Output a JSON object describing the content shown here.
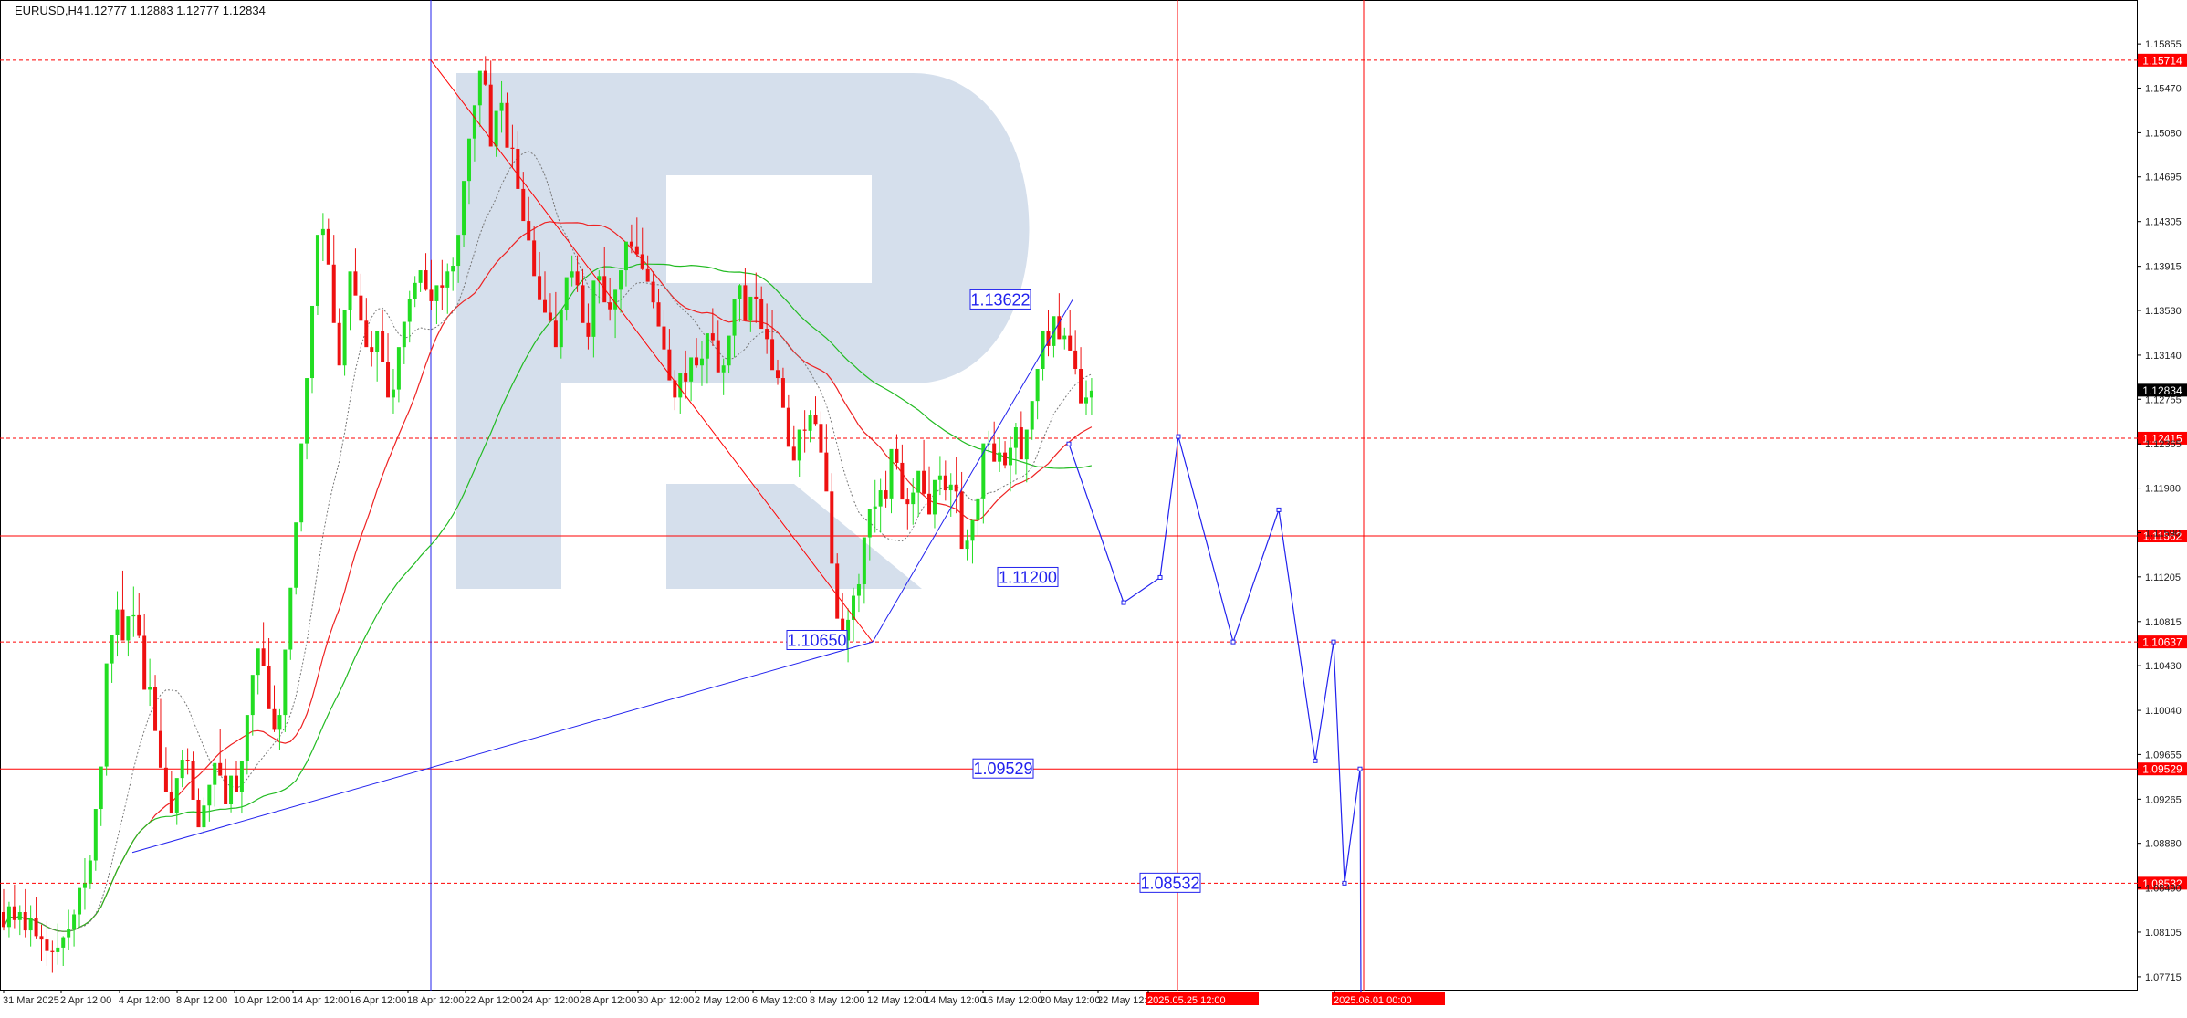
{
  "header": {
    "symbol": "EURUSD,H4",
    "ohlc": "1.12777 1.12883 1.12777 1.12834"
  },
  "colors": {
    "up_candle": "#22dd22",
    "down_candle": "#ee1111",
    "level_line": "#ff0000",
    "forecast": "#2222ee",
    "ma_red": "#ee2222",
    "ma_green": "#22bb22",
    "ma_dotted": "#777777",
    "watermark": "#d5dfec",
    "axis_text": "#222222",
    "price_tag_bg": "#000000",
    "level_tag_bg": "#ff0000"
  },
  "chart_data": {
    "type": "candlestick",
    "symbol": "EURUSD",
    "timeframe": "H4",
    "ylim": [
      1.07555,
      1.16111
    ],
    "y_ticks": [
      "1.15855",
      "1.15470",
      "1.15080",
      "1.14695",
      "1.14305",
      "1.13915",
      "1.13530",
      "1.13140",
      "1.12755",
      "1.12365",
      "1.11980",
      "1.11590",
      "1.11205",
      "1.10815",
      "1.10430",
      "1.10040",
      "1.09655",
      "1.09265",
      "1.08880",
      "1.08490",
      "1.08105",
      "1.07715"
    ],
    "x_ticks": [
      "31 Mar 2025",
      "2 Apr 12:00",
      "4 Apr 12:00",
      "8 Apr 12:00",
      "10 Apr 12:00",
      "14 Apr 12:00",
      "16 Apr 12:00",
      "18 Apr 12:00",
      "22 Apr 12:00",
      "24 Apr 12:00",
      "28 Apr 12:00",
      "30 Apr 12:00",
      "2 May 12:00",
      "6 May 12:00",
      "8 May 12:00",
      "12 May 12:00",
      "14 May 12:00",
      "16 May 12:00",
      "20 May 12:00",
      "22 May 12:00",
      "2025.05.25 12:00",
      "2025.06.01 00:00"
    ],
    "current_price": "1.12834",
    "horizontal_levels": [
      {
        "label": "1.15714",
        "value": 1.15714,
        "style": "dotted"
      },
      {
        "label": "1.12415",
        "value": 1.12415,
        "style": "dotted"
      },
      {
        "label": "1.11562",
        "value": 1.11562,
        "style": "solid"
      },
      {
        "label": "1.10637",
        "value": 1.10637,
        "style": "dotted"
      },
      {
        "label": "1.09529",
        "value": 1.09529,
        "style": "solid"
      },
      {
        "label": "1.08532",
        "value": 1.08532,
        "style": "dotted"
      }
    ],
    "vertical_markers": [
      "18 Apr 12:00",
      "2025.05.25 12:00",
      "2025.06.01 00:00"
    ],
    "forecast_labels": [
      {
        "text": "1.13622",
        "value": 1.13622
      },
      {
        "text": "1.11200",
        "value": 1.112
      },
      {
        "text": "1.10650",
        "value": 1.1065
      },
      {
        "text": "1.09529",
        "value": 1.09529
      },
      {
        "text": "1.08532",
        "value": 1.08532
      }
    ],
    "forecast_path": [
      {
        "t": 1171,
        "price": 1.12365
      },
      {
        "t": 1231,
        "price": 1.1098
      },
      {
        "t": 1271,
        "price": 1.112
      },
      {
        "t": 1291,
        "price": 1.1243
      },
      {
        "t": 1351,
        "price": 1.10637
      },
      {
        "t": 1401,
        "price": 1.1179
      },
      {
        "t": 1441,
        "price": 1.096
      },
      {
        "t": 1461,
        "price": 1.10637
      },
      {
        "t": 1473,
        "price": 1.08532
      },
      {
        "t": 1490,
        "price": 1.09529
      },
      {
        "t": 1491,
        "price": 1.07555
      }
    ],
    "wave_lines": [
      {
        "from": {
          "t": 472,
          "price": 1.15714
        },
        "to": {
          "t": 956,
          "price": 1.10637
        }
      },
      {
        "from": {
          "t": 956,
          "price": 1.10637
        },
        "to": {
          "t": 1175,
          "price": 1.13622
        }
      },
      {
        "from": {
          "t": 145,
          "price": 1.088
        },
        "to": {
          "t": 956,
          "price": 1.10637
        }
      }
    ],
    "candles": [
      [
        1.0828,
        1.0848,
        1.0812,
        1.0815
      ],
      [
        1.0815,
        1.0837,
        1.0806,
        1.0833
      ],
      [
        1.0833,
        1.0852,
        1.0814,
        1.0821
      ],
      [
        1.0821,
        1.0834,
        1.0808,
        1.0828
      ],
      [
        1.0828,
        1.0848,
        1.0806,
        1.0812
      ],
      [
        1.0812,
        1.0834,
        1.0798,
        1.0823
      ],
      [
        1.0823,
        1.0841,
        1.0805,
        1.0807
      ],
      [
        1.0807,
        1.0817,
        1.0785,
        1.0804
      ],
      [
        1.0804,
        1.082,
        1.0781,
        1.0794
      ],
      [
        1.0794,
        1.0803,
        1.0775,
        1.0793
      ],
      [
        1.0793,
        1.0818,
        1.0782,
        1.0797
      ],
      [
        1.0797,
        1.0807,
        1.0781,
        1.0806
      ],
      [
        1.0806,
        1.083,
        1.0795,
        1.0813
      ],
      [
        1.0813,
        1.083,
        1.0798,
        1.0826
      ],
      [
        1.0826,
        1.0845,
        1.0815,
        1.0849
      ],
      [
        1.0849,
        1.0875,
        1.083,
        1.0853
      ],
      [
        1.0853,
        1.0878,
        1.0848,
        1.0873
      ],
      [
        1.0873,
        1.0888,
        1.0864,
        1.0918
      ],
      [
        1.0918,
        1.0948,
        1.0903,
        1.0955
      ],
      [
        1.0955,
        1.0981,
        1.0947,
        1.1045
      ],
      [
        1.1045,
        1.1061,
        1.1028,
        1.107
      ],
      [
        1.107,
        1.1108,
        1.1051,
        1.1092
      ],
      [
        1.1092,
        1.1126,
        1.1074,
        1.1065
      ],
      [
        1.1065,
        1.1085,
        1.1051,
        1.1086
      ],
      [
        1.1086,
        1.1112,
        1.1068,
        1.1087
      ],
      [
        1.1087,
        1.1106,
        1.1067,
        1.1069
      ],
      [
        1.1069,
        1.1088,
        1.1048,
        1.1022
      ],
      [
        1.1022,
        1.1049,
        1.1008,
        1.1024
      ],
      [
        1.1024,
        1.1035,
        1.1001,
        1.0986
      ],
      [
        1.0986,
        1.1014,
        1.0979,
        1.0954
      ],
      [
        1.0954,
        1.0972,
        1.0942,
        1.0933
      ],
      [
        1.0933,
        1.0951,
        1.0926,
        1.0914
      ],
      [
        1.0914,
        1.0928,
        1.0904,
        1.0945
      ],
      [
        1.0945,
        1.0969,
        1.0937,
        1.0961
      ],
      [
        1.0961,
        1.0971,
        1.0948,
        1.096
      ],
      [
        1.096,
        1.0968,
        1.0942,
        1.0926
      ],
      [
        1.0926,
        1.0936,
        1.0905,
        1.0902
      ],
      [
        1.0902,
        1.0928,
        1.0896,
        1.0921
      ],
      [
        1.0921,
        1.0937,
        1.0907,
        1.0939
      ],
      [
        1.0939,
        1.0955,
        1.092,
        1.0958
      ],
      [
        1.0958,
        1.0988,
        1.0947,
        1.0947
      ],
      [
        1.0947,
        1.0962,
        1.0936,
        1.0922
      ],
      [
        1.0922,
        1.0947,
        1.0915,
        1.0947
      ],
      [
        1.0947,
        1.096,
        1.0939,
        1.0933
      ],
      [
        1.0933,
        1.0943,
        1.0914,
        1.096
      ],
      [
        1.096,
        1.0985,
        1.0948,
        1.1
      ],
      [
        1.1,
        1.1017,
        1.0982,
        1.1035
      ],
      [
        1.1035,
        1.1053,
        1.1018,
        1.1058
      ],
      [
        1.1058,
        1.1081,
        1.1051,
        1.1043
      ],
      [
        1.1043,
        1.1067,
        1.1025,
        1.1005
      ],
      [
        1.1005,
        1.1026,
        1.0985,
        1.0987
      ],
      [
        1.0987,
        1.1005,
        1.0969,
        1.1
      ],
      [
        1.1,
        1.1023,
        1.0985,
        1.1057
      ],
      [
        1.1057,
        1.1079,
        1.1048,
        1.1111
      ],
      [
        1.1111,
        1.1125,
        1.1105,
        1.1168
      ],
      [
        1.1168,
        1.1192,
        1.116,
        1.1237
      ],
      [
        1.1237,
        1.1255,
        1.1223,
        1.1294
      ],
      [
        1.1294,
        1.1305,
        1.1281,
        1.1357
      ],
      [
        1.1357,
        1.1378,
        1.1349,
        1.1419
      ],
      [
        1.1419,
        1.1438,
        1.1396,
        1.1424
      ],
      [
        1.1424,
        1.1433,
        1.1413,
        1.1393
      ],
      [
        1.1393,
        1.1419,
        1.1384,
        1.1342
      ],
      [
        1.1342,
        1.1355,
        1.1324,
        1.1305
      ],
      [
        1.1305,
        1.1333,
        1.1296,
        1.1353
      ],
      [
        1.1353,
        1.1383,
        1.1336,
        1.1387
      ],
      [
        1.1387,
        1.1407,
        1.1371,
        1.1366
      ],
      [
        1.1366,
        1.1385,
        1.1358,
        1.1344
      ],
      [
        1.1344,
        1.1364,
        1.1322,
        1.1321
      ],
      [
        1.1321,
        1.1335,
        1.1304,
        1.1317
      ],
      [
        1.1317,
        1.1331,
        1.1291,
        1.1335
      ],
      [
        1.1335,
        1.1353,
        1.1322,
        1.1308
      ],
      [
        1.1308,
        1.1333,
        1.1302,
        1.1277
      ],
      [
        1.1277,
        1.1302,
        1.1263,
        1.1284
      ],
      [
        1.1284,
        1.1293,
        1.1273,
        1.1321
      ],
      [
        1.1321,
        1.134,
        1.1306,
        1.1343
      ],
      [
        1.1343,
        1.137,
        1.1325,
        1.1363
      ],
      [
        1.1363,
        1.1383,
        1.1356,
        1.1377
      ],
      [
        1.1377,
        1.1386,
        1.1369,
        1.1388
      ],
      [
        1.1388,
        1.1403,
        1.137,
        1.1371
      ],
      [
        1.1371,
        1.1397,
        1.1353,
        1.1361
      ],
      [
        1.1361,
        1.1372,
        1.1341,
        1.1375
      ],
      [
        1.1375,
        1.1397,
        1.1353,
        1.1373
      ],
      [
        1.1373,
        1.1394,
        1.135,
        1.1387
      ],
      [
        1.1387,
        1.1399,
        1.137,
        1.1392
      ],
      [
        1.1392,
        1.1407,
        1.1377,
        1.1419
      ],
      [
        1.1419,
        1.1439,
        1.1408,
        1.1466
      ],
      [
        1.1466,
        1.1476,
        1.1446,
        1.1503
      ],
      [
        1.1503,
        1.1528,
        1.1483,
        1.1532
      ],
      [
        1.1532,
        1.156,
        1.1513,
        1.1562
      ],
      [
        1.1562,
        1.1575,
        1.1549,
        1.155
      ],
      [
        1.155,
        1.1571,
        1.1537,
        1.1496
      ],
      [
        1.1496,
        1.1522,
        1.1487,
        1.1527
      ],
      [
        1.1527,
        1.1553,
        1.1508,
        1.1534
      ],
      [
        1.1534,
        1.1543,
        1.1509,
        1.1495
      ],
      [
        1.1495,
        1.1515,
        1.1477,
        1.1494
      ],
      [
        1.1494,
        1.1509,
        1.1485,
        1.1459
      ],
      [
        1.1459,
        1.1474,
        1.1434,
        1.1431
      ],
      [
        1.1431,
        1.1452,
        1.1421,
        1.1414
      ],
      [
        1.1414,
        1.1427,
        1.1404,
        1.1383
      ],
      [
        1.1383,
        1.1404,
        1.1364,
        1.1362
      ],
      [
        1.1362,
        1.1387,
        1.1351,
        1.1351
      ],
      [
        1.1351,
        1.1368,
        1.1343,
        1.1344
      ],
      [
        1.1344,
        1.1369,
        1.1327,
        1.1321
      ],
      [
        1.1321,
        1.1333,
        1.1311,
        1.1353
      ],
      [
        1.1353,
        1.137,
        1.1344,
        1.1382
      ],
      [
        1.1382,
        1.1401,
        1.1374,
        1.1387
      ],
      [
        1.1387,
        1.1401,
        1.1369,
        1.1375
      ],
      [
        1.1375,
        1.1389,
        1.1359,
        1.1342
      ],
      [
        1.1342,
        1.1359,
        1.1319,
        1.133
      ],
      [
        1.133,
        1.135,
        1.1312,
        1.1379
      ],
      [
        1.1379,
        1.1388,
        1.1359,
        1.1383
      ],
      [
        1.1383,
        1.1408,
        1.1369,
        1.136
      ],
      [
        1.136,
        1.1381,
        1.1344,
        1.1354
      ],
      [
        1.1354,
        1.1371,
        1.1329,
        1.1371
      ],
      [
        1.1371,
        1.1385,
        1.1351,
        1.1388
      ],
      [
        1.1388,
        1.1405,
        1.1374,
        1.1413
      ],
      [
        1.1413,
        1.1428,
        1.1403,
        1.1409
      ],
      [
        1.1409,
        1.1434,
        1.14,
        1.1402
      ],
      [
        1.1402,
        1.1425,
        1.1388,
        1.1389
      ],
      [
        1.1389,
        1.1401,
        1.1378,
        1.1378
      ],
      [
        1.1378,
        1.1387,
        1.1355,
        1.136
      ],
      [
        1.136,
        1.1372,
        1.1351,
        1.1339
      ],
      [
        1.1339,
        1.1353,
        1.1324,
        1.1319
      ],
      [
        1.1319,
        1.1337,
        1.1292,
        1.1292
      ],
      [
        1.1292,
        1.1301,
        1.1266,
        1.1277
      ],
      [
        1.1277,
        1.1288,
        1.1263,
        1.1298
      ],
      [
        1.1298,
        1.1318,
        1.1276,
        1.1291
      ],
      [
        1.1291,
        1.1305,
        1.1274,
        1.1312
      ],
      [
        1.1312,
        1.1329,
        1.1303,
        1.1305
      ],
      [
        1.1305,
        1.1326,
        1.1287,
        1.1311
      ],
      [
        1.1311,
        1.1326,
        1.1289,
        1.1333
      ],
      [
        1.1333,
        1.1355,
        1.1322,
        1.1327
      ],
      [
        1.1327,
        1.1344,
        1.1306,
        1.1299
      ],
      [
        1.1299,
        1.1311,
        1.1279,
        1.1305
      ],
      [
        1.1305,
        1.1322,
        1.1298,
        1.1331
      ],
      [
        1.1331,
        1.1346,
        1.1312,
        1.1363
      ],
      [
        1.1363,
        1.1376,
        1.1343,
        1.1375
      ],
      [
        1.1375,
        1.139,
        1.1367,
        1.1344
      ],
      [
        1.1344,
        1.1353,
        1.1334,
        1.1365
      ],
      [
        1.1365,
        1.1386,
        1.1342,
        1.1363
      ],
      [
        1.1363,
        1.1374,
        1.1355,
        1.1337
      ],
      [
        1.1337,
        1.1359,
        1.1315,
        1.1328
      ],
      [
        1.1328,
        1.1353,
        1.1305,
        1.1301
      ],
      [
        1.1301,
        1.131,
        1.1288,
        1.1294
      ],
      [
        1.1294,
        1.1303,
        1.1283,
        1.1268
      ],
      [
        1.1268,
        1.1279,
        1.1259,
        1.1234
      ],
      [
        1.1234,
        1.1252,
        1.1225,
        1.1222
      ],
      [
        1.1222,
        1.1239,
        1.1208,
        1.1249
      ],
      [
        1.1249,
        1.1266,
        1.1229,
        1.1248
      ],
      [
        1.1248,
        1.1266,
        1.1238,
        1.1262
      ],
      [
        1.1262,
        1.1278,
        1.1252,
        1.1254
      ],
      [
        1.1254,
        1.1265,
        1.1245,
        1.1229
      ],
      [
        1.1229,
        1.1254,
        1.1208,
        1.1195
      ],
      [
        1.1195,
        1.1211,
        1.1182,
        1.1132
      ],
      [
        1.1132,
        1.1141,
        1.1115,
        1.1084
      ],
      [
        1.1084,
        1.1106,
        1.1065,
        1.1065
      ],
      [
        1.1065,
        1.1093,
        1.1046,
        1.1083
      ],
      [
        1.1083,
        1.1111,
        1.1064,
        1.1104
      ],
      [
        1.1104,
        1.1123,
        1.109,
        1.1114
      ],
      [
        1.1114,
        1.1139,
        1.1097,
        1.1155
      ],
      [
        1.1155,
        1.1171,
        1.1135,
        1.118
      ],
      [
        1.118,
        1.1205,
        1.1159,
        1.1182
      ],
      [
        1.1182,
        1.1206,
        1.1159,
        1.1196
      ],
      [
        1.1196,
        1.1213,
        1.1181,
        1.1189
      ],
      [
        1.1189,
        1.1208,
        1.1176,
        1.1232
      ],
      [
        1.1232,
        1.1245,
        1.1214,
        1.122
      ],
      [
        1.122,
        1.1236,
        1.1203,
        1.1188
      ],
      [
        1.1188,
        1.1198,
        1.1162,
        1.1184
      ],
      [
        1.1184,
        1.1207,
        1.1166,
        1.1194
      ],
      [
        1.1194,
        1.1212,
        1.1173,
        1.1213
      ],
      [
        1.1213,
        1.124,
        1.1191,
        1.1193
      ],
      [
        1.1193,
        1.1217,
        1.1175,
        1.1175
      ],
      [
        1.1175,
        1.1189,
        1.1163,
        1.1205
      ],
      [
        1.1205,
        1.1226,
        1.1192,
        1.1209
      ],
      [
        1.1209,
        1.1222,
        1.1187,
        1.1196
      ],
      [
        1.1196,
        1.1211,
        1.1173,
        1.1201
      ],
      [
        1.1201,
        1.1225,
        1.1176,
        1.1195
      ],
      [
        1.1195,
        1.1212,
        1.1172,
        1.1145
      ],
      [
        1.1145,
        1.1162,
        1.1135,
        1.1152
      ],
      [
        1.1152,
        1.1162,
        1.1132,
        1.117
      ],
      [
        1.117,
        1.1185,
        1.1156,
        1.1189
      ],
      [
        1.1189,
        1.1214,
        1.1167,
        1.1237
      ],
      [
        1.1237,
        1.1248,
        1.1229,
        1.1237
      ],
      [
        1.1237,
        1.1256,
        1.1228,
        1.1221
      ],
      [
        1.1221,
        1.1242,
        1.1212,
        1.1229
      ],
      [
        1.1229,
        1.1239,
        1.1215,
        1.1218
      ],
      [
        1.1218,
        1.1243,
        1.1195,
        1.1233
      ],
      [
        1.1233,
        1.1255,
        1.121,
        1.1251
      ],
      [
        1.1251,
        1.1265,
        1.1231,
        1.1223
      ],
      [
        1.1223,
        1.1241,
        1.1203,
        1.1249
      ],
      [
        1.1249,
        1.1272,
        1.124,
        1.1274
      ],
      [
        1.1274,
        1.1293,
        1.1258,
        1.1302
      ],
      [
        1.1302,
        1.1313,
        1.1292,
        1.1335
      ],
      [
        1.1335,
        1.1353,
        1.1313,
        1.1322
      ],
      [
        1.1322,
        1.1339,
        1.1312,
        1.1348
      ],
      [
        1.1348,
        1.1368,
        1.1328,
        1.1328
      ],
      [
        1.1328,
        1.1338,
        1.1319,
        1.1331
      ],
      [
        1.1331,
        1.1353,
        1.1318,
        1.1318
      ],
      [
        1.1318,
        1.1336,
        1.1297,
        1.1302
      ],
      [
        1.1302,
        1.1321,
        1.1293,
        1.1272
      ],
      [
        1.1272,
        1.1292,
        1.1262,
        1.1277
      ],
      [
        1.1277,
        1.1294,
        1.1262,
        1.1283
      ]
    ]
  },
  "watermark": {
    "shape": "R-logo"
  }
}
